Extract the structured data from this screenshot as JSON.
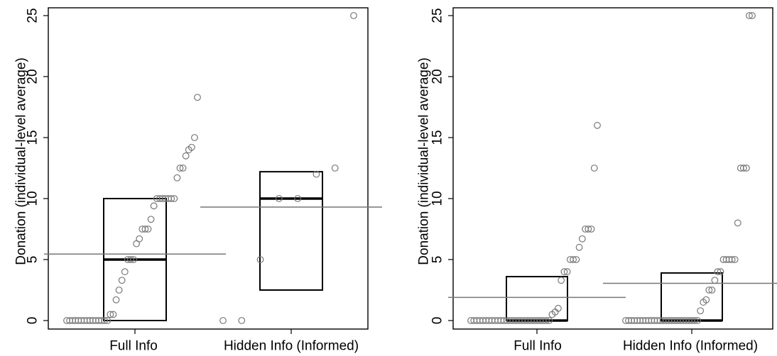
{
  "chart_data": [
    {
      "type": "scatter",
      "ylabel": "Donation (individual-level average)",
      "ylim": [
        0,
        25
      ],
      "yticks": [
        0,
        5,
        10,
        15,
        20,
        25
      ],
      "categories": [
        "Full Info",
        "Hidden Info (Informed)"
      ],
      "groups": [
        {
          "category": "Full Info",
          "values": [
            0,
            0,
            0,
            0,
            0,
            0,
            0,
            0,
            0,
            0,
            0,
            0,
            0,
            0,
            0,
            0.5,
            0.5,
            1.7,
            2.5,
            3.3,
            4,
            5,
            5,
            5,
            6.3,
            6.7,
            7.5,
            7.5,
            7.5,
            8.3,
            9.4,
            10,
            10,
            10,
            10,
            10,
            10,
            10,
            11.7,
            12.5,
            12.5,
            13.5,
            14,
            14.2,
            15,
            18.3
          ],
          "box": {
            "q1": 0,
            "median": 5,
            "q3": 10
          },
          "mean": 5.45
        },
        {
          "category": "Hidden Info (Informed)",
          "values": [
            0,
            0,
            5,
            10,
            10,
            12,
            12.5,
            25
          ],
          "box": {
            "q1": 2.5,
            "median": 10,
            "q3": 12.2
          },
          "mean": 9.3
        }
      ]
    },
    {
      "type": "scatter",
      "ylabel": "Donation (individual-level average)",
      "ylim": [
        0,
        25
      ],
      "yticks": [
        0,
        5,
        10,
        15,
        20,
        25
      ],
      "categories": [
        "Full Info",
        "Hidden Info (Informed)"
      ],
      "groups": [
        {
          "category": "Full Info",
          "values": [
            0,
            0,
            0,
            0,
            0,
            0,
            0,
            0,
            0,
            0,
            0,
            0,
            0,
            0,
            0,
            0,
            0,
            0,
            0,
            0,
            0,
            0,
            0,
            0,
            0,
            0,
            0,
            0.5,
            0.7,
            1,
            3.3,
            4,
            4,
            5,
            5,
            5,
            6,
            6.7,
            7.5,
            7.5,
            7.5,
            12.5,
            16
          ],
          "box": {
            "q1": 0,
            "median": 0,
            "q3": 3.6
          },
          "mean": 1.9
        },
        {
          "category": "Hidden Info (Informed)",
          "values": [
            0,
            0,
            0,
            0,
            0,
            0,
            0,
            0,
            0,
            0,
            0,
            0,
            0,
            0,
            0,
            0,
            0,
            0,
            0,
            0,
            0,
            0,
            0,
            0,
            0,
            0,
            0.8,
            1.5,
            1.7,
            2.5,
            2.5,
            3.3,
            4,
            4,
            5,
            5,
            5,
            5,
            5,
            8,
            12.5,
            12.5,
            12.5,
            25,
            25
          ],
          "box": {
            "q1": 0,
            "median": 0,
            "q3": 3.9
          },
          "mean": 3.05
        }
      ]
    }
  ]
}
